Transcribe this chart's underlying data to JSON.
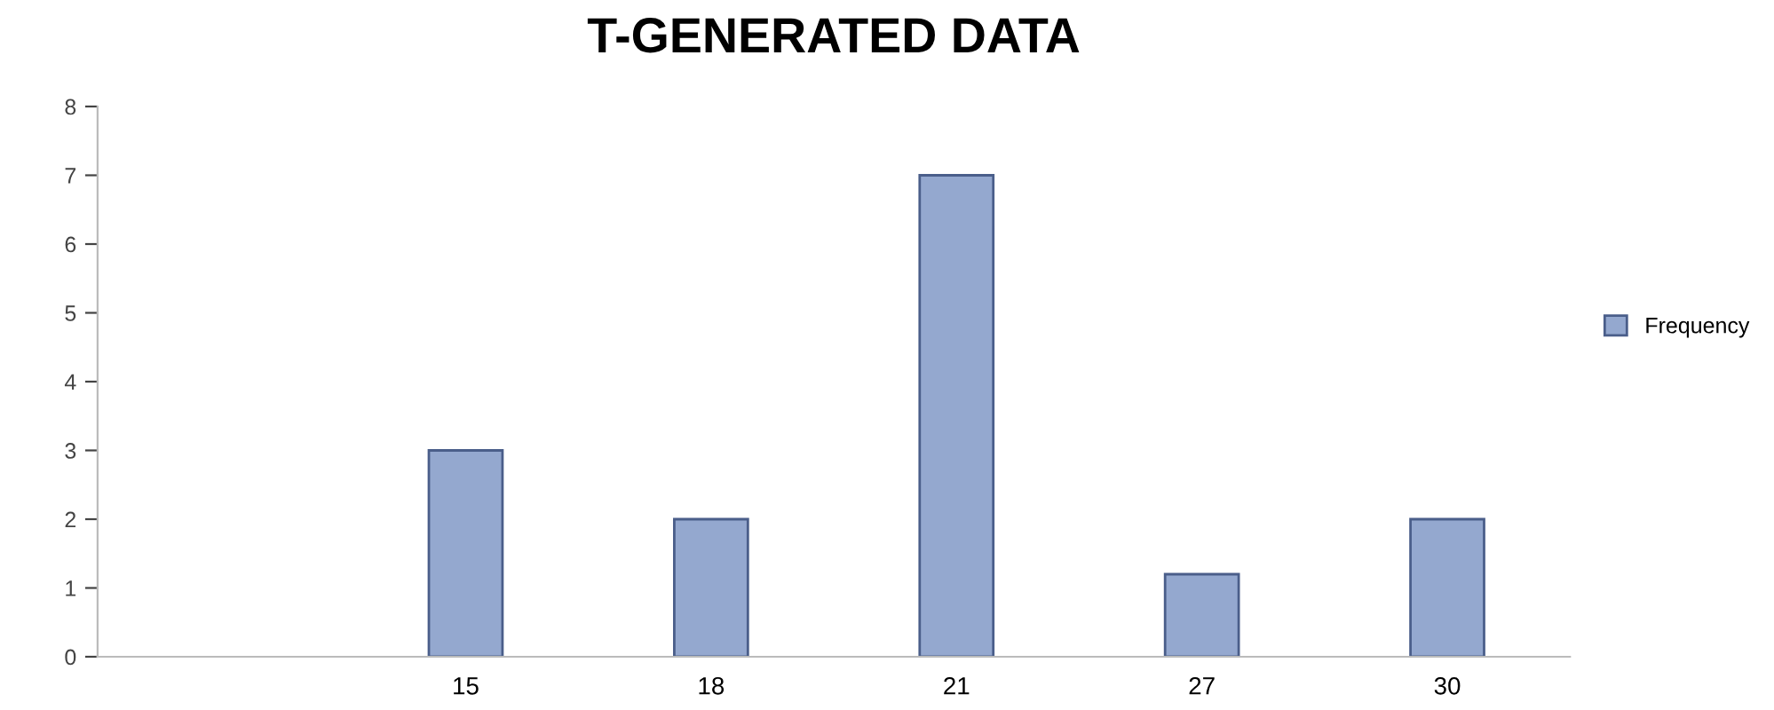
{
  "chart_data": {
    "type": "bar",
    "title": "T-GENERATED DATA",
    "categories": [
      null,
      "15",
      "18",
      "21",
      "27",
      "30"
    ],
    "series": [
      {
        "name": "Frequency",
        "color": "#94a8cf",
        "values": [
          null,
          3,
          2,
          7,
          1.2,
          2
        ]
      }
    ],
    "ylim": [
      0,
      8
    ],
    "yticks": [
      0,
      1,
      2,
      3,
      4,
      5,
      6,
      7,
      8
    ],
    "grid": false,
    "legend": "right"
  }
}
